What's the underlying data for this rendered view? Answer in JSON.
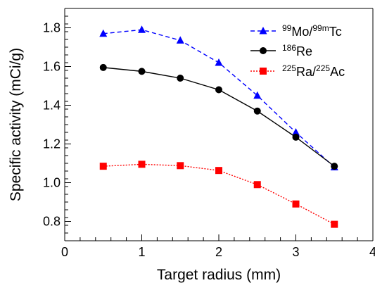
{
  "chart_data": {
    "type": "line",
    "xlabel": "Target radius (mm)",
    "ylabel": "Specific activity (mCi/g)",
    "xlim": [
      0,
      4
    ],
    "ylim": [
      0.7,
      1.9
    ],
    "x_ticks": [
      "0",
      "1",
      "2",
      "3",
      "4"
    ],
    "y_ticks": [
      "0.8",
      "1.0",
      "1.2",
      "1.4",
      "1.6",
      "1.8"
    ],
    "legend_position": "top-right",
    "series": [
      {
        "name": "99Mo/99mTc",
        "label_parts": [
          {
            "text": "99",
            "sup": true
          },
          {
            "text": "Mo/",
            "sup": false
          },
          {
            "text": "99m",
            "sup": true
          },
          {
            "text": "Tc",
            "sup": false
          }
        ],
        "color": "#0000ff",
        "marker": "triangle",
        "line_style": "dashed",
        "x": [
          0.5,
          1.0,
          1.5,
          2.0,
          2.5,
          3.0,
          3.5
        ],
        "y": [
          1.77,
          1.79,
          1.735,
          1.62,
          1.45,
          1.26,
          1.08
        ]
      },
      {
        "name": "186Re",
        "label_parts": [
          {
            "text": "186",
            "sup": true
          },
          {
            "text": "Re",
            "sup": false
          }
        ],
        "color": "#000000",
        "marker": "circle",
        "line_style": "solid",
        "x": [
          0.5,
          1.0,
          1.5,
          2.0,
          2.5,
          3.0,
          3.5
        ],
        "y": [
          1.595,
          1.575,
          1.54,
          1.48,
          1.37,
          1.235,
          1.085
        ]
      },
      {
        "name": "225Ra/225Ac",
        "label_parts": [
          {
            "text": "225",
            "sup": true
          },
          {
            "text": "Ra/",
            "sup": false
          },
          {
            "text": "225",
            "sup": true
          },
          {
            "text": "Ac",
            "sup": false
          }
        ],
        "color": "#ff0000",
        "marker": "square",
        "line_style": "dotted",
        "x": [
          0.5,
          1.0,
          1.5,
          2.0,
          2.5,
          3.0,
          3.5
        ],
        "y": [
          1.085,
          1.095,
          1.088,
          1.063,
          0.99,
          0.89,
          0.785
        ]
      }
    ]
  }
}
